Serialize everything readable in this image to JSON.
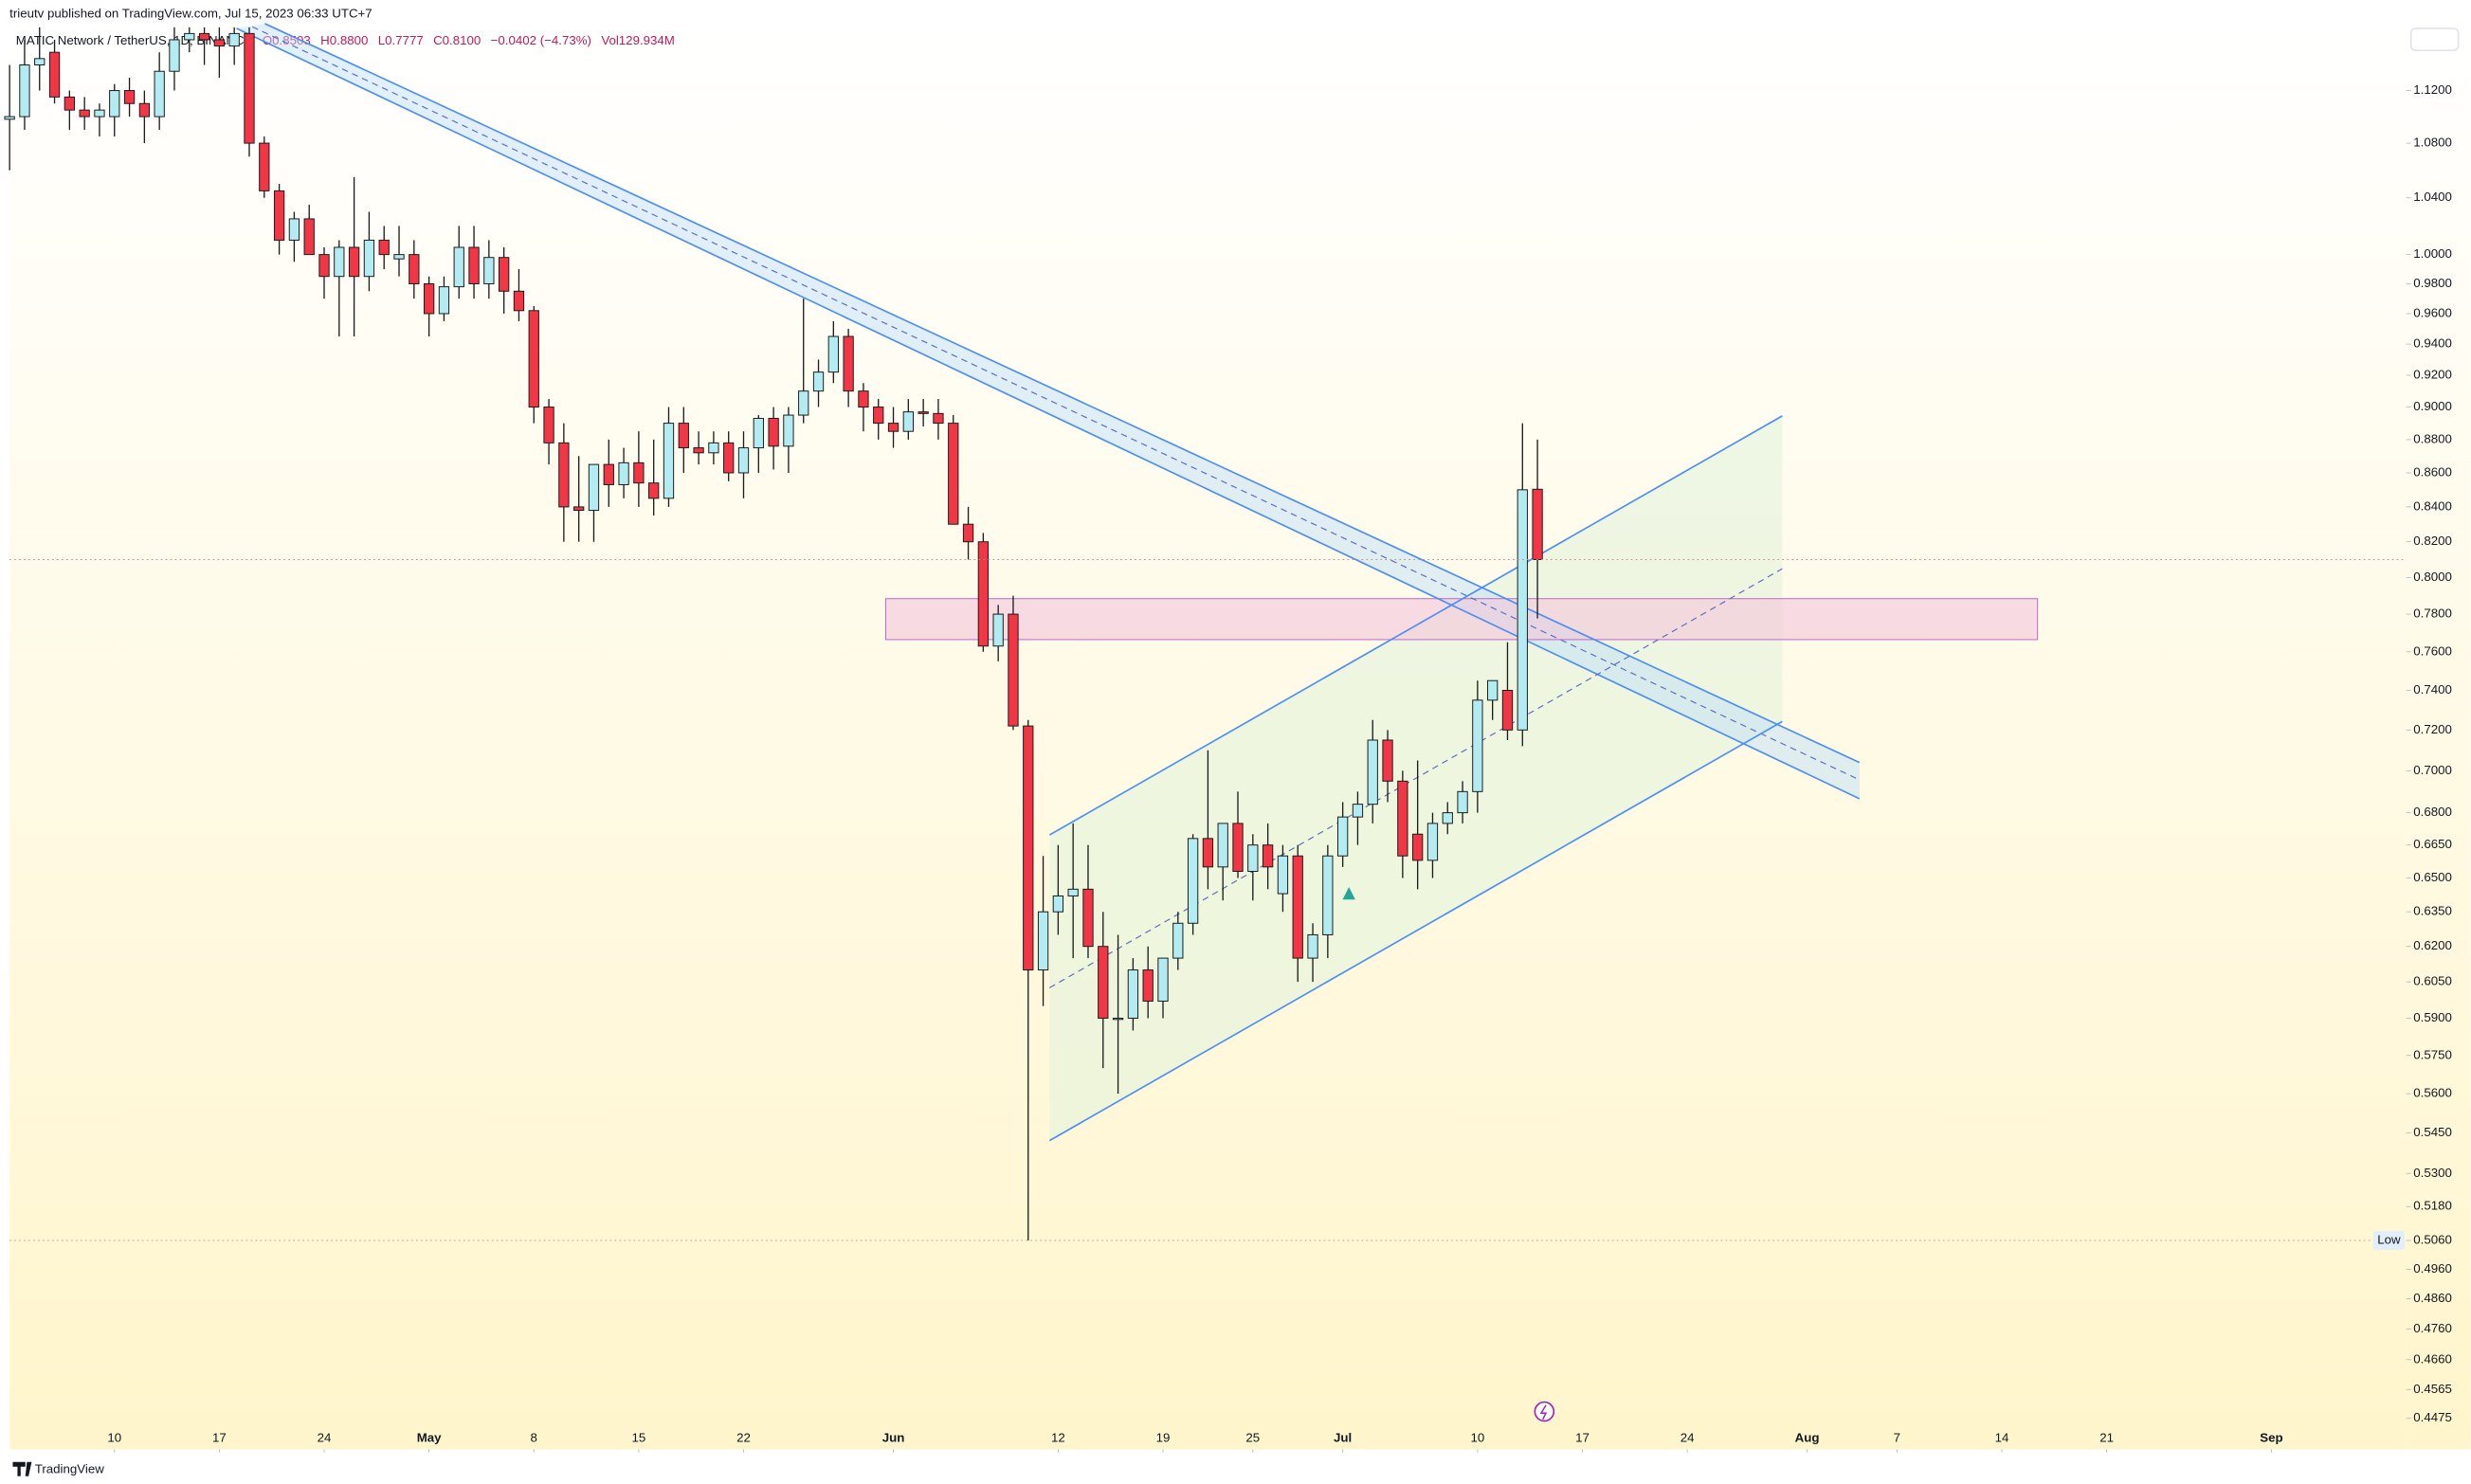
{
  "header": {
    "publisher": "trieutv published on TradingView.com, Jul 15, 2023 06:33 UTC+7",
    "brand": "TradingView"
  },
  "chart_data": {
    "type": "candlestick",
    "title": "MATIC Network / TetherUS, 1D, BINANCE",
    "legend": {
      "open": "O0.8503",
      "high": "H0.8800",
      "low": "L0.7777",
      "close": "C0.8100",
      "change": "−0.0402 (−4.73%)",
      "volume": "Vol129.934M"
    },
    "low_label": "Low",
    "up_color": "#b2ebf2",
    "down_color": "#f23645",
    "log_scale": true,
    "grid": false,
    "x": [
      "2023-04-03",
      "2023-04-04",
      "2023-04-05",
      "2023-04-06",
      "2023-04-07",
      "2023-04-08",
      "2023-04-09",
      "2023-04-10",
      "2023-04-11",
      "2023-04-12",
      "2023-04-13",
      "2023-04-14",
      "2023-04-15",
      "2023-04-16",
      "2023-04-17",
      "2023-04-18",
      "2023-04-19",
      "2023-04-20",
      "2023-04-21",
      "2023-04-22",
      "2023-04-23",
      "2023-04-24",
      "2023-04-25",
      "2023-04-26",
      "2023-04-27",
      "2023-04-28",
      "2023-04-29",
      "2023-04-30",
      "2023-05-01",
      "2023-05-02",
      "2023-05-03",
      "2023-05-04",
      "2023-05-05",
      "2023-05-06",
      "2023-05-07",
      "2023-05-08",
      "2023-05-09",
      "2023-05-10",
      "2023-05-11",
      "2023-05-12",
      "2023-05-13",
      "2023-05-14",
      "2023-05-15",
      "2023-05-16",
      "2023-05-17",
      "2023-05-18",
      "2023-05-19",
      "2023-05-20",
      "2023-05-21",
      "2023-05-22",
      "2023-05-23",
      "2023-05-24",
      "2023-05-25",
      "2023-05-26",
      "2023-05-27",
      "2023-05-28",
      "2023-05-29",
      "2023-05-30",
      "2023-05-31",
      "2023-06-01",
      "2023-06-02",
      "2023-06-03",
      "2023-06-04",
      "2023-06-05",
      "2023-06-06",
      "2023-06-07",
      "2023-06-08",
      "2023-06-09",
      "2023-06-10",
      "2023-06-11",
      "2023-06-12",
      "2023-06-13",
      "2023-06-14",
      "2023-06-15",
      "2023-06-16",
      "2023-06-17",
      "2023-06-18",
      "2023-06-19",
      "2023-06-20",
      "2023-06-21",
      "2023-06-22",
      "2023-06-23",
      "2023-06-24",
      "2023-06-25",
      "2023-06-26",
      "2023-06-27",
      "2023-06-28",
      "2023-06-29",
      "2023-06-30",
      "2023-07-01",
      "2023-07-02",
      "2023-07-03",
      "2023-07-04",
      "2023-07-05",
      "2023-07-06",
      "2023-07-07",
      "2023-07-08",
      "2023-07-09",
      "2023-07-10",
      "2023-07-11",
      "2023-07-12",
      "2023-07-13",
      "2023-07-14"
    ],
    "open": [
      1.098,
      1.1,
      1.14,
      1.15,
      1.115,
      1.105,
      1.1,
      1.1,
      1.12,
      1.11,
      1.1,
      1.135,
      1.16,
      1.165,
      1.16,
      1.155,
      1.165,
      1.08,
      1.045,
      1.01,
      1.025,
      1.0,
      0.985,
      1.005,
      0.985,
      1.01,
      0.997,
      1.0,
      0.98,
      0.96,
      0.978,
      1.005,
      0.98,
      0.998,
      0.975,
      0.962,
      0.9,
      0.878,
      0.84,
      0.838,
      0.865,
      0.853,
      0.866,
      0.854,
      0.845,
      0.89,
      0.875,
      0.872,
      0.878,
      0.86,
      0.875,
      0.893,
      0.876,
      0.895,
      0.91,
      0.922,
      0.945,
      0.91,
      0.9,
      0.89,
      0.885,
      0.897,
      0.896,
      0.89,
      0.83,
      0.82,
      0.763,
      0.78,
      0.722,
      0.61,
      0.635,
      0.642,
      0.645,
      0.62,
      0.59,
      0.59,
      0.61,
      0.597,
      0.615,
      0.63,
      0.668,
      0.655,
      0.675,
      0.653,
      0.665,
      0.643,
      0.66,
      0.615,
      0.625,
      0.66,
      0.678,
      0.684,
      0.715,
      0.695,
      0.67,
      0.658,
      0.675,
      0.68,
      0.69,
      0.735,
      0.74,
      0.72,
      0.8503
    ],
    "high": [
      1.14,
      1.16,
      1.17,
      1.16,
      1.12,
      1.115,
      1.11,
      1.125,
      1.13,
      1.12,
      1.15,
      1.17,
      1.17,
      1.17,
      1.17,
      1.17,
      1.17,
      1.085,
      1.05,
      1.03,
      1.035,
      1.005,
      1.01,
      1.055,
      1.03,
      1.02,
      1.02,
      1.01,
      0.985,
      0.985,
      1.02,
      1.02,
      1.01,
      1.005,
      0.99,
      0.965,
      0.905,
      0.89,
      0.87,
      0.865,
      0.88,
      0.875,
      0.885,
      0.88,
      0.9,
      0.9,
      0.885,
      0.885,
      0.885,
      0.885,
      0.895,
      0.9,
      0.9,
      0.97,
      0.93,
      0.955,
      0.95,
      0.915,
      0.905,
      0.9,
      0.905,
      0.905,
      0.905,
      0.895,
      0.84,
      0.825,
      0.785,
      0.79,
      0.725,
      0.66,
      0.665,
      0.675,
      0.665,
      0.635,
      0.625,
      0.615,
      0.62,
      0.615,
      0.635,
      0.67,
      0.71,
      0.675,
      0.69,
      0.67,
      0.675,
      0.665,
      0.665,
      0.63,
      0.665,
      0.685,
      0.69,
      0.725,
      0.72,
      0.7,
      0.705,
      0.68,
      0.685,
      0.695,
      0.745,
      0.745,
      0.765,
      0.89,
      0.88
    ],
    "low": [
      1.06,
      1.09,
      1.12,
      1.11,
      1.09,
      1.09,
      1.085,
      1.085,
      1.1,
      1.08,
      1.09,
      1.12,
      1.15,
      1.14,
      1.13,
      1.14,
      1.07,
      1.04,
      1.0,
      0.995,
      1.0,
      0.97,
      0.945,
      0.945,
      0.975,
      0.99,
      0.985,
      0.97,
      0.945,
      0.955,
      0.97,
      0.97,
      0.97,
      0.96,
      0.955,
      0.89,
      0.865,
      0.82,
      0.82,
      0.82,
      0.84,
      0.845,
      0.84,
      0.835,
      0.84,
      0.86,
      0.865,
      0.865,
      0.855,
      0.845,
      0.86,
      0.862,
      0.86,
      0.89,
      0.9,
      0.915,
      0.9,
      0.885,
      0.88,
      0.875,
      0.88,
      0.888,
      0.88,
      0.83,
      0.81,
      0.76,
      0.755,
      0.72,
      0.506,
      0.595,
      0.625,
      0.615,
      0.615,
      0.57,
      0.56,
      0.585,
      0.59,
      0.59,
      0.61,
      0.625,
      0.645,
      0.64,
      0.65,
      0.64,
      0.645,
      0.635,
      0.605,
      0.605,
      0.615,
      0.655,
      0.665,
      0.675,
      0.685,
      0.65,
      0.645,
      0.65,
      0.67,
      0.675,
      0.68,
      0.725,
      0.715,
      0.712,
      0.7777
    ],
    "close": [
      1.1,
      1.14,
      1.145,
      1.115,
      1.105,
      1.1,
      1.105,
      1.12,
      1.11,
      1.1,
      1.135,
      1.16,
      1.165,
      1.16,
      1.155,
      1.165,
      1.08,
      1.045,
      1.01,
      1.025,
      1.0,
      0.985,
      1.005,
      0.985,
      1.01,
      1.0,
      1.0,
      0.98,
      0.96,
      0.978,
      1.005,
      0.98,
      0.998,
      0.975,
      0.962,
      0.9,
      0.878,
      0.84,
      0.838,
      0.865,
      0.853,
      0.866,
      0.854,
      0.845,
      0.89,
      0.875,
      0.872,
      0.878,
      0.86,
      0.875,
      0.893,
      0.876,
      0.895,
      0.91,
      0.922,
      0.945,
      0.91,
      0.9,
      0.89,
      0.885,
      0.897,
      0.896,
      0.89,
      0.83,
      0.82,
      0.763,
      0.78,
      0.722,
      0.61,
      0.635,
      0.642,
      0.645,
      0.62,
      0.59,
      0.59,
      0.61,
      0.597,
      0.615,
      0.63,
      0.668,
      0.655,
      0.675,
      0.653,
      0.665,
      0.655,
      0.66,
      0.615,
      0.625,
      0.66,
      0.678,
      0.684,
      0.715,
      0.695,
      0.66,
      0.658,
      0.675,
      0.68,
      0.69,
      0.735,
      0.745,
      0.72,
      0.85,
      0.81
    ],
    "xlim": [
      "2023-04-03",
      "2023-09-10"
    ],
    "xticks": [
      {
        "value": "2023-04-10",
        "label": "10"
      },
      {
        "value": "2023-04-17",
        "label": "17"
      },
      {
        "value": "2023-04-24",
        "label": "24"
      },
      {
        "value": "2023-05-01",
        "label": "May"
      },
      {
        "value": "2023-05-08",
        "label": "8"
      },
      {
        "value": "2023-05-15",
        "label": "15"
      },
      {
        "value": "2023-05-22",
        "label": "22"
      },
      {
        "value": "2023-06-01",
        "label": "Jun"
      },
      {
        "value": "2023-06-12",
        "label": "12"
      },
      {
        "value": "2023-06-19",
        "label": "19"
      },
      {
        "value": "2023-06-25",
        "label": "25"
      },
      {
        "value": "2023-07-01",
        "label": "Jul"
      },
      {
        "value": "2023-07-10",
        "label": "10"
      },
      {
        "value": "2023-07-17",
        "label": "17"
      },
      {
        "value": "2023-07-24",
        "label": "24"
      },
      {
        "value": "2023-08-01",
        "label": "Aug"
      },
      {
        "value": "2023-08-07",
        "label": "7"
      },
      {
        "value": "2023-08-14",
        "label": "14"
      },
      {
        "value": "2023-08-21",
        "label": "21"
      },
      {
        "value": "2023-09-01",
        "label": "Sep"
      }
    ],
    "ylim": [
      0.438,
      1.173
    ],
    "yticks": [
      {
        "value": 1.12,
        "label": "1.1200"
      },
      {
        "value": 1.08,
        "label": "1.0800"
      },
      {
        "value": 1.04,
        "label": "1.0400"
      },
      {
        "value": 1.0,
        "label": "1.0000"
      },
      {
        "value": 0.98,
        "label": "0.9800"
      },
      {
        "value": 0.96,
        "label": "0.9600"
      },
      {
        "value": 0.94,
        "label": "0.9400"
      },
      {
        "value": 0.92,
        "label": "0.9200"
      },
      {
        "value": 0.9,
        "label": "0.9000"
      },
      {
        "value": 0.88,
        "label": "0.8800"
      },
      {
        "value": 0.86,
        "label": "0.8600"
      },
      {
        "value": 0.84,
        "label": "0.8400"
      },
      {
        "value": 0.82,
        "label": "0.8200"
      },
      {
        "value": 0.8,
        "label": "0.8000"
      },
      {
        "value": 0.78,
        "label": "0.7800"
      },
      {
        "value": 0.76,
        "label": "0.7600"
      },
      {
        "value": 0.74,
        "label": "0.7400"
      },
      {
        "value": 0.72,
        "label": "0.7200"
      },
      {
        "value": 0.7,
        "label": "0.7000"
      },
      {
        "value": 0.68,
        "label": "0.6800"
      },
      {
        "value": 0.665,
        "label": "0.6650"
      },
      {
        "value": 0.65,
        "label": "0.6500"
      },
      {
        "value": 0.635,
        "label": "0.6350"
      },
      {
        "value": 0.62,
        "label": "0.6200"
      },
      {
        "value": 0.605,
        "label": "0.6050"
      },
      {
        "value": 0.59,
        "label": "0.5900"
      },
      {
        "value": 0.575,
        "label": "0.5750"
      },
      {
        "value": 0.56,
        "label": "0.5600"
      },
      {
        "value": 0.545,
        "label": "0.5450"
      },
      {
        "value": 0.53,
        "label": "0.5300"
      },
      {
        "value": 0.518,
        "label": "0.5180"
      },
      {
        "value": 0.506,
        "label": "0.5060"
      },
      {
        "value": 0.496,
        "label": "0.4960"
      },
      {
        "value": 0.486,
        "label": "0.4860"
      },
      {
        "value": 0.476,
        "label": "0.4760"
      },
      {
        "value": 0.466,
        "label": "0.4660"
      },
      {
        "value": 0.4565,
        "label": "0.4565"
      },
      {
        "value": 0.4475,
        "label": "0.4475"
      }
    ]
  }
}
